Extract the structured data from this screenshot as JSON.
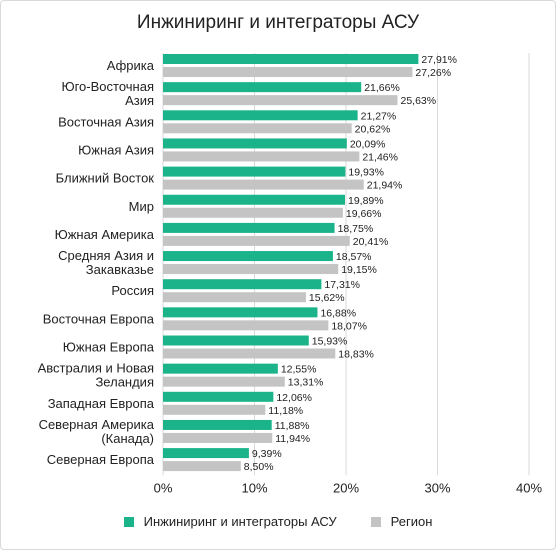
{
  "chart_data": {
    "type": "bar",
    "orientation": "horizontal",
    "title": "Инжиниринг и интеграторы АСУ",
    "categories": [
      [
        "Африка"
      ],
      [
        "Юго-Восточная",
        "Азия"
      ],
      [
        "Восточная Азия"
      ],
      [
        "Южная Азия"
      ],
      [
        "Ближний Восток"
      ],
      [
        "Мир"
      ],
      [
        "Южная Америка"
      ],
      [
        "Средняя Азия и",
        "Закавказье"
      ],
      [
        "Россия"
      ],
      [
        "Восточная Европа"
      ],
      [
        "Южная Европа"
      ],
      [
        "Австралия и Новая",
        "Зеландия"
      ],
      [
        "Западная Европа"
      ],
      [
        "Северная Америка",
        "(Канада)"
      ],
      [
        "Северная Европа"
      ]
    ],
    "series": [
      {
        "name": "Инжиниринг и интеграторы АСУ",
        "color": "#1ab38a",
        "values": [
          27.91,
          21.66,
          21.27,
          20.09,
          19.93,
          19.89,
          18.75,
          18.57,
          17.31,
          16.88,
          15.93,
          12.55,
          12.06,
          11.88,
          9.39
        ],
        "labels": [
          "27,91%",
          "21,66%",
          "21,27%",
          "20,09%",
          "19,93%",
          "19,89%",
          "18,75%",
          "18,57%",
          "17,31%",
          "16,88%",
          "15,93%",
          "12,55%",
          "12,06%",
          "11,88%",
          "9,39%"
        ]
      },
      {
        "name": "Регион",
        "color": "#c4c4c4",
        "values": [
          27.26,
          25.63,
          20.62,
          21.46,
          21.94,
          19.66,
          20.41,
          19.15,
          15.62,
          18.07,
          18.83,
          13.31,
          11.18,
          11.94,
          8.5
        ],
        "labels": [
          "27,26%",
          "25,63%",
          "20,62%",
          "21,46%",
          "21,94%",
          "19,66%",
          "20,41%",
          "19,15%",
          "15,62%",
          "18,07%",
          "18,83%",
          "13,31%",
          "11,18%",
          "11,94%",
          "8,50%"
        ]
      }
    ],
    "xlim": [
      0,
      40
    ],
    "xticks": [
      "0%",
      "10%",
      "20%",
      "30%",
      "40%"
    ],
    "legend_position": "bottom",
    "grid": true
  }
}
